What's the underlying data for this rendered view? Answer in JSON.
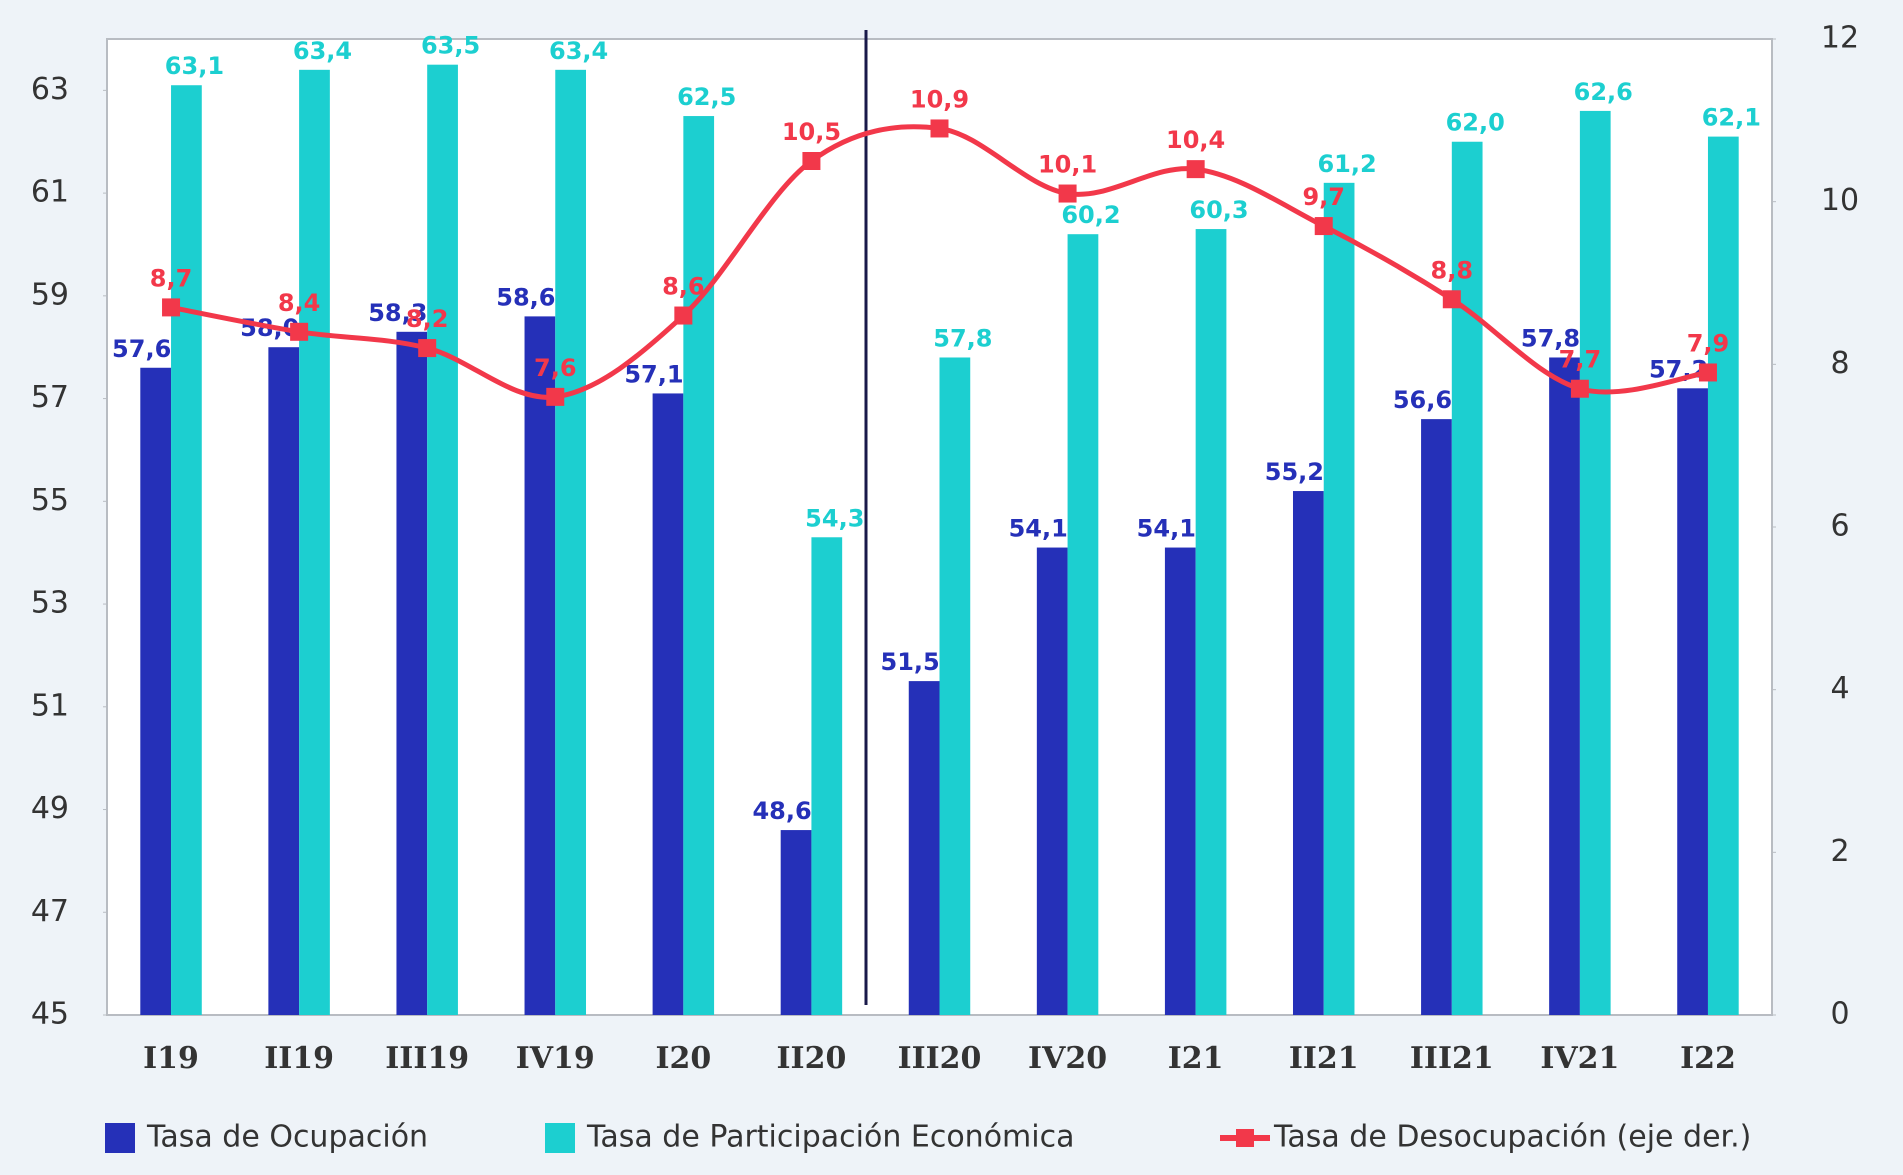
{
  "chart_data": {
    "type": "bar",
    "categories": [
      "I19",
      "II19",
      "III19",
      "IV19",
      "I20",
      "II20",
      "III20",
      "IV20",
      "I21",
      "II21",
      "III21",
      "IV21",
      "I22"
    ],
    "series": [
      {
        "name": "Tasa de Ocupación",
        "color": "#2530b8",
        "type": "bar",
        "values": [
          57.6,
          58.0,
          58.3,
          58.6,
          57.1,
          48.6,
          51.5,
          54.1,
          54.1,
          55.2,
          56.6,
          57.8,
          57.2
        ],
        "value_labels": [
          "57,6",
          "58,0",
          "58,3",
          "58,6",
          "57,1",
          "48,6",
          "51,5",
          "54,1",
          "54,1",
          "55,2",
          "56,6",
          "57,8",
          "57,2"
        ]
      },
      {
        "name": "Tasa de Participación Económica",
        "color": "#1ccfd0",
        "type": "bar",
        "values": [
          63.1,
          63.4,
          63.5,
          63.4,
          62.5,
          54.3,
          57.8,
          60.2,
          60.3,
          61.2,
          62.0,
          62.6,
          62.1
        ],
        "value_labels": [
          "63,1",
          "63,4",
          "63,5",
          "63,4",
          "62,5",
          "54,3",
          "57,8",
          "60,2",
          "60,3",
          "61,2",
          "62,0",
          "62,6",
          "62,1"
        ]
      },
      {
        "name": "Tasa de Desocupación (eje der.)",
        "color": "#f2384a",
        "type": "line",
        "axis": "y2",
        "values": [
          8.7,
          8.4,
          8.2,
          7.6,
          8.6,
          10.5,
          10.9,
          10.1,
          10.4,
          9.7,
          8.8,
          7.7,
          7.9
        ],
        "value_labels": [
          "8,7",
          "8,4",
          "8,2",
          "7,6",
          "8,6",
          "10,5",
          "10,9",
          "10,1",
          "10,4",
          "9,7",
          "8,8",
          "7,7",
          "7,9"
        ]
      }
    ],
    "ylim": [
      45,
      64
    ],
    "yticks": [
      45,
      47,
      49,
      51,
      53,
      55,
      57,
      59,
      61,
      63
    ],
    "y2lim": [
      0,
      12
    ],
    "y2ticks": [
      0,
      2,
      4,
      6,
      8,
      10,
      12
    ]
  }
}
